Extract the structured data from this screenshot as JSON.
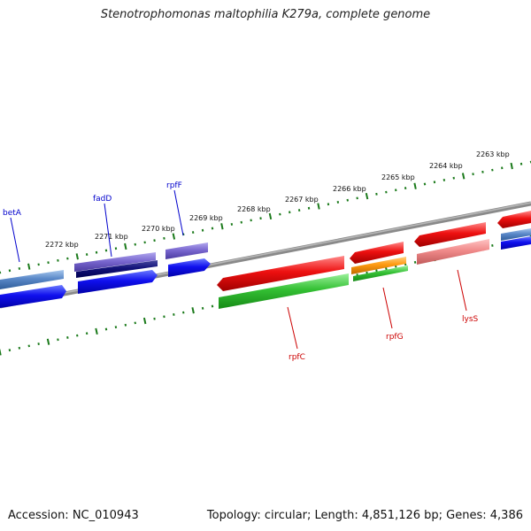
{
  "title": "Stenotrophomonas maltophilia K279a, complete genome",
  "footer": {
    "accession": "Accession: NC_010943",
    "summary": "Topology: circular; Length: 4,851,126 bp; Genes: 4,386"
  },
  "colors": {
    "background": "#ffffff",
    "backbone": "#808080",
    "tick": "#1b7a1b",
    "forward_label": "#0000cc",
    "reverse_label": "#cc0000"
  },
  "scale": {
    "unit": "kbp",
    "labels": [
      "2272 kbp",
      "2271 kbp",
      "2270 kbp",
      "2269 kbp",
      "2268 kbp",
      "2267 kbp",
      "2266 kbp",
      "2265 kbp",
      "2264 kbp",
      "2263 kbp"
    ]
  },
  "genes": {
    "forward_labels": [
      "betA",
      "fadD",
      "rpfF"
    ],
    "reverse_labels": [
      "rpfC",
      "rpfG",
      "lysS"
    ]
  }
}
